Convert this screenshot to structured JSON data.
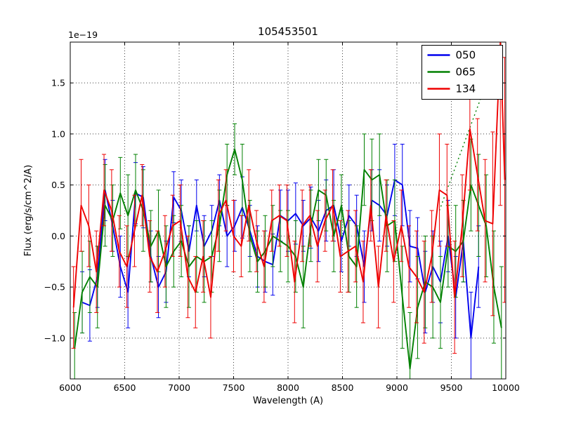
{
  "chart_data": {
    "type": "line",
    "title": "105453501",
    "xlabel": "Wavelength (A)",
    "ylabel": "Flux (erg/s/cm^2/A)",
    "offset_text": "1e−19",
    "xlim": [
      6000,
      10000
    ],
    "ylim": [
      -1.4,
      1.9
    ],
    "xticks": [
      6000,
      6500,
      7000,
      7500,
      8000,
      8500,
      9000,
      9500,
      10000
    ],
    "xtick_labels": [
      "6000",
      "6500",
      "7000",
      "7500",
      "8000",
      "8500",
      "9000",
      "9500",
      "10000"
    ],
    "yticks": [
      -1.0,
      -0.5,
      0.0,
      0.5,
      1.0,
      1.5
    ],
    "ytick_labels": [
      "−1.0",
      "−0.5",
      "0.0",
      "0.5",
      "1.0",
      "1.5"
    ],
    "grid": true,
    "grid_style": "dotted",
    "legend": {
      "position": "upper right",
      "entries": [
        {
          "label": "050",
          "color": "#0000ee"
        },
        {
          "label": "065",
          "color": "#008000"
        },
        {
          "label": "134",
          "color": "#ee0000"
        }
      ]
    },
    "series": [
      {
        "name": "050",
        "color": "#0000ee",
        "x": [
          6110,
          6180,
          6250,
          6320,
          6390,
          6460,
          6530,
          6600,
          6670,
          6740,
          6810,
          6880,
          6950,
          7020,
          7090,
          7160,
          7230,
          7300,
          7370,
          7440,
          7510,
          7580,
          7650,
          7720,
          7790,
          7860,
          7930,
          8000,
          8070,
          8140,
          8210,
          8280,
          8350,
          8420,
          8490,
          8560,
          8630,
          8700,
          8770,
          8840,
          8910,
          8980,
          9050,
          9120,
          9190,
          9260,
          9330,
          9400,
          9470,
          9540,
          9610,
          9680,
          9750
        ],
        "y": [
          -0.65,
          -0.68,
          -0.4,
          0.45,
          0.1,
          -0.3,
          -0.55,
          0.42,
          0.38,
          -0.2,
          -0.5,
          -0.35,
          0.38,
          0.25,
          -0.15,
          0.3,
          -0.1,
          0.05,
          0.35,
          0.0,
          0.1,
          0.28,
          0.05,
          -0.2,
          -0.25,
          -0.28,
          0.2,
          0.15,
          0.22,
          0.1,
          0.18,
          0.05,
          0.25,
          0.3,
          -0.05,
          0.2,
          0.1,
          -0.3,
          0.35,
          0.3,
          0.2,
          0.55,
          0.5,
          -0.1,
          -0.12,
          -0.55,
          -0.3,
          -0.45,
          0.0,
          -0.6,
          -0.05,
          -1.0,
          -0.3
        ],
        "yerr": [
          0.3,
          0.35,
          0.3,
          0.3,
          0.25,
          0.3,
          0.35,
          0.3,
          0.3,
          0.25,
          0.3,
          0.3,
          0.25,
          0.3,
          0.25,
          0.25,
          0.3,
          0.25,
          0.25,
          0.3,
          0.25,
          0.3,
          0.25,
          0.3,
          0.3,
          0.3,
          0.25,
          0.3,
          0.3,
          0.25,
          0.3,
          0.3,
          0.3,
          0.35,
          0.3,
          0.3,
          0.3,
          0.35,
          0.3,
          0.35,
          0.3,
          0.35,
          0.4,
          0.35,
          0.3,
          0.4,
          0.35,
          0.4,
          0.35,
          0.4,
          0.4,
          0.45,
          0.4
        ]
      },
      {
        "name": "065",
        "color": "#008000",
        "x": [
          6040,
          6110,
          6180,
          6250,
          6320,
          6390,
          6460,
          6530,
          6600,
          6670,
          6740,
          6810,
          6880,
          6950,
          7020,
          7090,
          7160,
          7230,
          7300,
          7370,
          7440,
          7510,
          7580,
          7650,
          7720,
          7790,
          7860,
          7930,
          8000,
          8070,
          8140,
          8210,
          8280,
          8350,
          8420,
          8490,
          8560,
          8630,
          8700,
          8770,
          8840,
          8910,
          8980,
          9050,
          9120,
          9190,
          9260,
          9330,
          9400,
          9470,
          9540,
          9610,
          9680,
          9750,
          9820,
          9890,
          9960
        ],
        "y": [
          -1.1,
          -0.55,
          -0.4,
          -0.5,
          0.3,
          0.15,
          0.42,
          0.2,
          0.45,
          0.25,
          -0.1,
          0.05,
          -0.3,
          -0.15,
          -0.05,
          -0.3,
          -0.2,
          -0.25,
          -0.2,
          0.1,
          0.6,
          0.85,
          0.55,
          0.0,
          -0.25,
          -0.15,
          0.0,
          -0.05,
          -0.1,
          -0.2,
          -0.5,
          0.1,
          0.45,
          0.4,
          0.0,
          0.3,
          -0.2,
          -0.3,
          0.65,
          0.55,
          0.6,
          0.1,
          0.15,
          -0.6,
          -1.3,
          -0.7,
          -0.45,
          -0.5,
          -0.65,
          -0.1,
          -0.15,
          -0.05,
          0.5,
          0.3,
          0.1,
          -0.5,
          -0.9
        ],
        "yerr": [
          0.35,
          0.4,
          0.35,
          0.4,
          0.4,
          0.35,
          0.35,
          0.4,
          0.35,
          0.4,
          0.35,
          0.4,
          0.4,
          0.35,
          0.35,
          0.4,
          0.35,
          0.4,
          0.35,
          0.35,
          0.3,
          0.25,
          0.35,
          0.35,
          0.3,
          0.35,
          0.3,
          0.3,
          0.35,
          0.35,
          0.4,
          0.35,
          0.3,
          0.35,
          0.35,
          0.3,
          0.35,
          0.4,
          0.35,
          0.4,
          0.4,
          0.45,
          0.4,
          0.5,
          0.55,
          0.5,
          0.45,
          0.5,
          0.45,
          0.4,
          0.45,
          0.4,
          0.45,
          0.5,
          0.5,
          0.55,
          0.6
        ],
        "dotted_segment": {
          "x": [
            9390,
            9960
          ],
          "y": [
            0.25,
            1.9
          ]
        }
      },
      {
        "name": "134",
        "color": "#ee0000",
        "x": [
          6030,
          6100,
          6170,
          6240,
          6310,
          6380,
          6450,
          6520,
          6590,
          6660,
          6730,
          6800,
          6870,
          6940,
          7010,
          7080,
          7150,
          7220,
          7290,
          7360,
          7430,
          7500,
          7570,
          7640,
          7710,
          7780,
          7850,
          7920,
          7990,
          8060,
          8130,
          8200,
          8270,
          8340,
          8410,
          8480,
          8550,
          8620,
          8690,
          8760,
          8830,
          8900,
          8970,
          9040,
          9110,
          9180,
          9250,
          9320,
          9390,
          9460,
          9530,
          9600,
          9670,
          9740,
          9810,
          9880,
          9950,
          9990
        ],
        "y": [
          -0.7,
          0.3,
          0.1,
          -0.35,
          0.45,
          0.25,
          -0.15,
          -0.3,
          0.05,
          0.4,
          -0.2,
          -0.35,
          -0.15,
          0.1,
          0.15,
          -0.4,
          -0.55,
          -0.2,
          -0.6,
          0.2,
          0.35,
          0.0,
          -0.1,
          0.3,
          -0.05,
          -0.3,
          0.15,
          0.2,
          0.15,
          -0.45,
          0.1,
          0.2,
          -0.1,
          0.15,
          0.3,
          -0.2,
          -0.15,
          -0.1,
          -0.45,
          0.3,
          -0.5,
          0.2,
          -0.25,
          0.1,
          -0.3,
          -0.4,
          -0.55,
          -0.2,
          0.45,
          0.4,
          -0.6,
          0.1,
          1.05,
          0.6,
          0.15,
          0.12,
          1.9,
          0.55
        ],
        "yerr": [
          0.4,
          0.45,
          0.4,
          0.4,
          0.35,
          0.4,
          0.35,
          0.4,
          0.35,
          0.3,
          0.35,
          0.4,
          0.35,
          0.3,
          0.35,
          0.4,
          0.35,
          0.35,
          0.4,
          0.35,
          0.3,
          0.35,
          0.3,
          0.35,
          0.3,
          0.35,
          0.3,
          0.3,
          0.35,
          0.4,
          0.35,
          0.3,
          0.35,
          0.3,
          0.35,
          0.35,
          0.4,
          0.35,
          0.4,
          0.35,
          0.4,
          0.35,
          0.4,
          0.35,
          0.4,
          0.45,
          0.5,
          0.45,
          0.55,
          0.5,
          0.55,
          0.5,
          0.6,
          0.55,
          0.6,
          0.9,
          1.6,
          1.2
        ]
      }
    ]
  }
}
